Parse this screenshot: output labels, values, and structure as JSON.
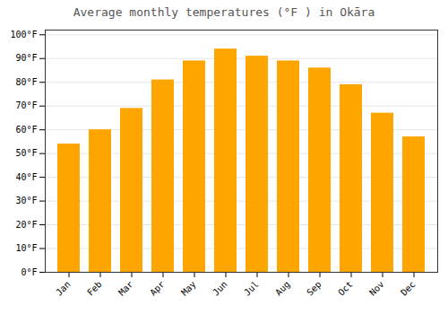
{
  "chart_data": {
    "type": "bar",
    "title": "Average monthly temperatures (°F ) in Okāra",
    "categories": [
      "Jan",
      "Feb",
      "Mar",
      "Apr",
      "May",
      "Jun",
      "Jul",
      "Aug",
      "Sep",
      "Oct",
      "Nov",
      "Dec"
    ],
    "values": [
      54,
      60,
      69,
      81,
      89,
      94,
      91,
      89,
      86,
      79,
      67,
      57
    ],
    "color": "#FFA500",
    "ylim": [
      0,
      102
    ],
    "yticks": [
      {
        "value": 0,
        "label": "0°F"
      },
      {
        "value": 10,
        "label": "10°F"
      },
      {
        "value": 20,
        "label": "20°F"
      },
      {
        "value": 30,
        "label": "30°F"
      },
      {
        "value": 40,
        "label": "40°F"
      },
      {
        "value": 50,
        "label": "50°F"
      },
      {
        "value": 60,
        "label": "60°F"
      },
      {
        "value": 70,
        "label": "70°F"
      },
      {
        "value": 80,
        "label": "80°F"
      },
      {
        "value": 90,
        "label": "90°F"
      },
      {
        "value": 100,
        "label": "100°F"
      }
    ],
    "grid": true
  }
}
